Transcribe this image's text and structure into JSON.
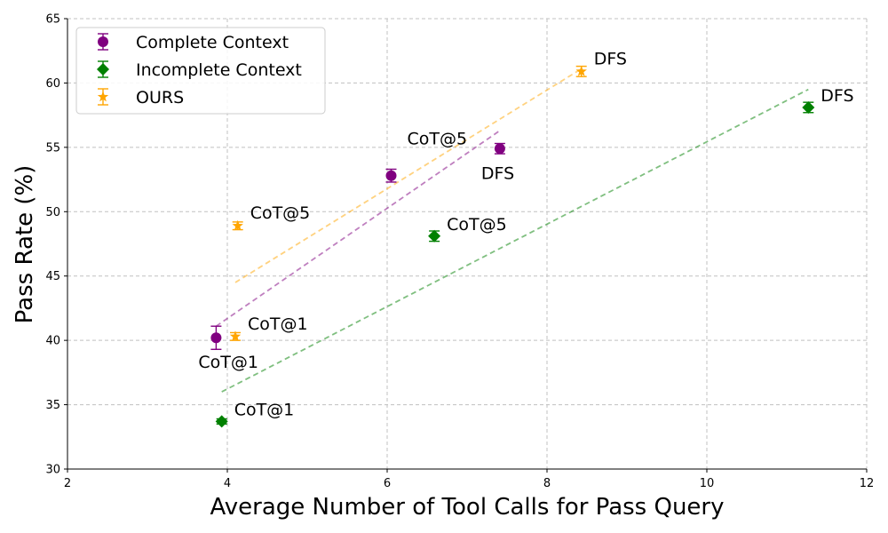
{
  "chart_data": {
    "type": "scatter",
    "title": "",
    "xlabel": "Average Number of Tool Calls for Pass Query",
    "ylabel": "Pass Rate (%)",
    "xlim": [
      2,
      12
    ],
    "ylim": [
      30,
      65
    ],
    "xticks": [
      2,
      4,
      6,
      8,
      10,
      12
    ],
    "yticks": [
      30,
      35,
      40,
      45,
      50,
      55,
      60,
      65
    ],
    "grid": true,
    "legend_position": "top-left",
    "series": [
      {
        "name": "Complete Context",
        "color": "#800080",
        "marker": "circle",
        "points": [
          {
            "x": 3.86,
            "y": 40.2,
            "err": 0.9,
            "label": "CoT@1"
          },
          {
            "x": 6.05,
            "y": 52.8,
            "err": 0.5,
            "label": "CoT@5"
          },
          {
            "x": 7.41,
            "y": 54.9,
            "err": 0.4,
            "label": "DFS"
          }
        ],
        "trendline": [
          [
            3.86,
            41.1
          ],
          [
            7.41,
            56.3
          ]
        ]
      },
      {
        "name": "Incomplete Context",
        "color": "#008000",
        "marker": "diamond",
        "points": [
          {
            "x": 3.93,
            "y": 33.7,
            "err": 0.2,
            "label": "CoT@1"
          },
          {
            "x": 6.59,
            "y": 48.1,
            "err": 0.4,
            "label": "CoT@5"
          },
          {
            "x": 11.27,
            "y": 58.1,
            "err": 0.4,
            "label": "DFS"
          }
        ],
        "trendline": [
          [
            3.93,
            36.0
          ],
          [
            11.27,
            59.5
          ]
        ]
      },
      {
        "name": "OURS",
        "color": "#ffa500",
        "marker": "star",
        "points": [
          {
            "x": 4.1,
            "y": 40.3,
            "err": 0.3,
            "label": "CoT@1"
          },
          {
            "x": 4.13,
            "y": 48.9,
            "err": 0.3,
            "label": "CoT@5"
          },
          {
            "x": 8.43,
            "y": 60.9,
            "err": 0.4,
            "label": "DFS"
          }
        ],
        "trendline": [
          [
            4.1,
            44.5
          ],
          [
            8.43,
            61.1
          ]
        ]
      }
    ]
  }
}
